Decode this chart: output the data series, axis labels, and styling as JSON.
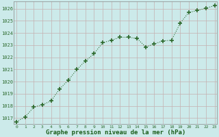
{
  "x": [
    0,
    1,
    2,
    3,
    4,
    5,
    6,
    7,
    8,
    9,
    10,
    11,
    12,
    13,
    14,
    15,
    16,
    17,
    18,
    19,
    20,
    21,
    22,
    23
  ],
  "y": [
    1016.7,
    1017.1,
    1017.9,
    1018.1,
    1018.4,
    1019.4,
    1020.1,
    1021.0,
    1021.7,
    1022.3,
    1023.2,
    1023.4,
    1023.65,
    1023.65,
    1023.55,
    1022.85,
    1023.1,
    1023.35,
    1023.4,
    1024.8,
    1025.7,
    1025.85,
    1026.05,
    1026.25
  ],
  "line_color": "#2d6a2d",
  "marker": "+",
  "marker_size": 4,
  "marker_lw": 1.2,
  "bg_color": "#cceaea",
  "grid_color": "#c4b0b0",
  "xlabel": "Graphe pression niveau de la mer (hPa)",
  "xlabel_color": "#1a5c1a",
  "tick_label_color": "#2d6a2d",
  "ylim_min": 1016.5,
  "ylim_max": 1026.6,
  "yticks": [
    1017,
    1018,
    1019,
    1020,
    1021,
    1022,
    1023,
    1024,
    1025,
    1026
  ],
  "xlim_min": -0.3,
  "xlim_max": 23.3,
  "figw": 3.2,
  "figh": 2.0,
  "dpi": 100
}
